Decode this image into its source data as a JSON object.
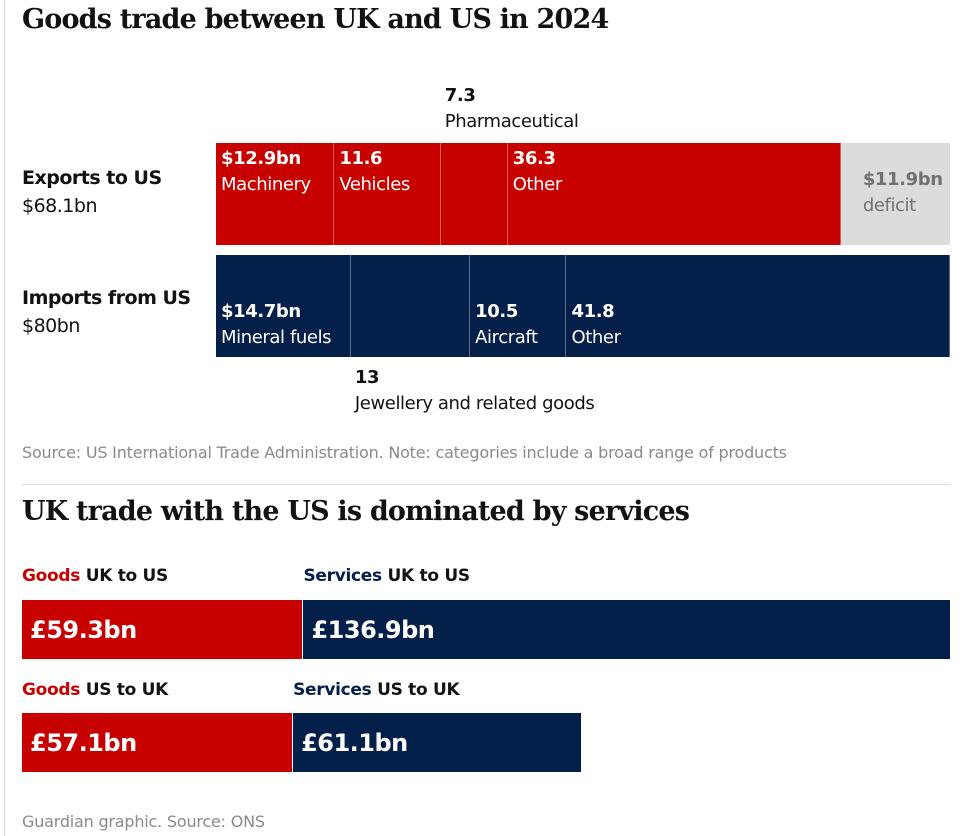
{
  "colors": {
    "exports": "#c70000",
    "imports": "#041f4a",
    "deficit": "#dcdcdc"
  },
  "chart_data": [
    {
      "type": "bar",
      "title": "Goods trade between UK and US in 2024",
      "unit": "$bn",
      "stacked": true,
      "rows": [
        {
          "label": "Exports to US",
          "total": "$68.1bn",
          "segments": [
            {
              "name": "Machinery",
              "value": 12.9,
              "label": "$12.9bn"
            },
            {
              "name": "Vehicles",
              "value": 11.6,
              "label": "11.6"
            },
            {
              "name": "Pharmaceutical",
              "value": 7.3,
              "label": "7.3"
            },
            {
              "name": "Other",
              "value": 36.3,
              "label": "36.3"
            },
            {
              "name": "deficit",
              "value": 11.9,
              "label": "$11.9bn"
            }
          ]
        },
        {
          "label": "Imports from US",
          "total": "$80bn",
          "segments": [
            {
              "name": "Mineral fuels",
              "value": 14.7,
              "label": "$14.7bn"
            },
            {
              "name": "Jewellery and related goods",
              "value": 13,
              "label": "13"
            },
            {
              "name": "Aircraft",
              "value": 10.5,
              "label": "10.5"
            },
            {
              "name": "Other",
              "value": 41.8,
              "label": "41.8"
            }
          ]
        }
      ],
      "source": "Source: US International Trade Administration. Note: categories include a broad range of products"
    },
    {
      "type": "bar",
      "title": "UK trade with the US is dominated by services",
      "unit": "£bn",
      "rows": [
        {
          "segments": [
            {
              "kind": "Goods",
              "dir": "UK to US",
              "value": 59.3,
              "label": "£59.3bn"
            },
            {
              "kind": "Services",
              "dir": "UK to US",
              "value": 136.9,
              "label": "£136.9bn"
            }
          ]
        },
        {
          "segments": [
            {
              "kind": "Goods",
              "dir": "US to UK",
              "value": 57.1,
              "label": "£57.1bn"
            },
            {
              "kind": "Services",
              "dir": "US to UK",
              "value": 61.1,
              "label": "£61.1bn"
            }
          ]
        }
      ],
      "source": "Guardian graphic. Source: ONS"
    }
  ]
}
